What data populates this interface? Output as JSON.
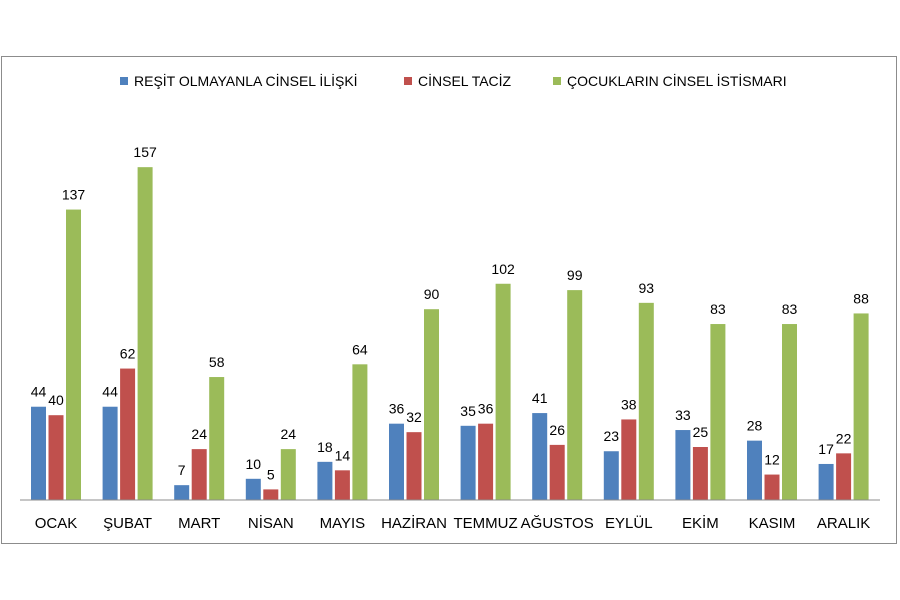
{
  "chart_data": {
    "type": "bar",
    "title": "",
    "xlabel": "",
    "ylabel": "",
    "ylim": [
      0,
      170
    ],
    "grid": false,
    "legend_position": "top",
    "categories": [
      "OCAK",
      "ŞUBAT",
      "MART",
      "NİSAN",
      "MAYIS",
      "HAZİRAN",
      "TEMMUZ",
      "AĞUSTOS",
      "EYLÜL",
      "EKİM",
      "KASIM",
      "ARALIK"
    ],
    "series": [
      {
        "name": "REŞİT OLMAYANLA CİNSEL İLİŞKİ",
        "color": "#4F81BD",
        "values": [
          44,
          44,
          7,
          10,
          18,
          36,
          35,
          41,
          23,
          33,
          28,
          17
        ]
      },
      {
        "name": "CİNSEL TACİZ",
        "color": "#C0504D",
        "values": [
          40,
          62,
          24,
          5,
          14,
          32,
          36,
          26,
          38,
          25,
          12,
          22
        ]
      },
      {
        "name": "ÇOCUKLARIN CİNSEL İSTİSMARI",
        "color": "#9BBB59",
        "values": [
          137,
          157,
          58,
          24,
          64,
          90,
          102,
          99,
          93,
          83,
          83,
          88
        ]
      }
    ]
  }
}
